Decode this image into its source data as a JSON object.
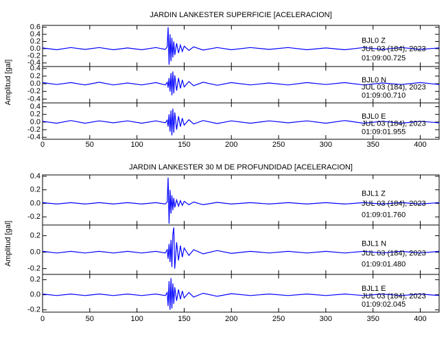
{
  "chart_data": [
    {
      "type": "line",
      "title": "JARDIN LANKESTER SUPERFICIE [ACELERACION]",
      "ylabel": "Amplitud [gal]",
      "xlim": [
        0,
        420
      ],
      "xticks": [
        0,
        50,
        100,
        150,
        200,
        250,
        300,
        350,
        400
      ],
      "x": [
        0,
        15,
        30,
        45,
        60,
        75,
        90,
        105,
        120,
        130,
        132,
        133,
        134,
        135,
        136,
        137,
        138,
        139,
        140,
        142,
        144,
        146,
        148,
        150,
        155,
        160,
        170,
        185,
        200,
        220,
        240,
        260,
        280,
        300,
        320,
        340,
        360,
        380,
        400,
        420
      ],
      "panels": [
        {
          "station": "BJL0 Z",
          "date": "JUL 03 (184), 2023",
          "time": "01:09:00.725",
          "color": "#0000ff",
          "ylim": [
            -0.5,
            0.65
          ],
          "yticks": [
            0.6,
            0.4,
            0.2,
            {
              "value": 0,
              "label": "0.0"
            },
            -0.2,
            -0.4
          ],
          "values": [
            0.02,
            -0.03,
            0.03,
            -0.02,
            0.03,
            -0.03,
            0.02,
            -0.03,
            0.03,
            -0.02,
            0.05,
            0.6,
            -0.45,
            0.4,
            -0.35,
            0.3,
            -0.25,
            0.2,
            -0.18,
            0.15,
            -0.12,
            0.1,
            -0.08,
            0.07,
            -0.05,
            0.05,
            -0.04,
            0.03,
            -0.03,
            0.03,
            -0.02,
            0.03,
            -0.03,
            0.02,
            -0.03,
            0.03,
            -0.02,
            0.03,
            -0.02,
            0.02
          ]
        },
        {
          "station": "BJL0 N",
          "date": "JUL 03 (184), 2023",
          "time": "01:09:00.710",
          "color": "#0000ff",
          "ylim": [
            -0.5,
            0.45
          ],
          "yticks": [
            0.4,
            0.2,
            {
              "value": 0,
              "label": "0.0"
            },
            -0.2,
            -0.4
          ],
          "values": [
            0.03,
            -0.02,
            0.03,
            -0.03,
            0.04,
            -0.03,
            0.02,
            -0.03,
            0.03,
            -0.03,
            0.04,
            -0.1,
            0.15,
            -0.2,
            0.28,
            -0.3,
            0.32,
            -0.25,
            0.22,
            -0.18,
            0.15,
            -0.12,
            0.1,
            -0.08,
            0.06,
            -0.05,
            0.04,
            -0.04,
            0.03,
            -0.03,
            0.02,
            -0.03,
            0.03,
            -0.02,
            0.03,
            -0.03,
            0.02,
            -0.02,
            0.03,
            -0.02
          ]
        },
        {
          "station": "BJL0 E",
          "date": "JUL 03 (184), 2023",
          "time": "01:09:01.955",
          "color": "#0000ff",
          "ylim": [
            -0.45,
            0.5
          ],
          "yticks": [
            0.4,
            0.2,
            {
              "value": 0,
              "label": "0.0"
            },
            -0.2,
            -0.4
          ],
          "values": [
            0.02,
            -0.03,
            0.04,
            -0.03,
            0.03,
            -0.02,
            0.03,
            -0.03,
            0.03,
            -0.02,
            0.05,
            -0.12,
            0.2,
            -0.25,
            0.3,
            -0.35,
            0.35,
            -0.28,
            0.25,
            -0.2,
            0.15,
            -0.12,
            0.1,
            -0.08,
            0.06,
            -0.05,
            0.04,
            -0.04,
            0.03,
            -0.03,
            0.03,
            -0.02,
            0.03,
            -0.03,
            0.04,
            -0.03,
            0.02,
            -0.03,
            0.02,
            -0.02
          ]
        }
      ]
    },
    {
      "type": "line",
      "title": "JARDIN LANKESTER 30 M DE PROFUNDIDAD [ACELERACION]",
      "ylabel": "Amplitud [gal]",
      "xlim": [
        0,
        420
      ],
      "xticks": [
        0,
        50,
        100,
        150,
        200,
        250,
        300,
        350,
        400
      ],
      "x": [
        0,
        15,
        30,
        45,
        60,
        75,
        90,
        105,
        120,
        130,
        132,
        133,
        134,
        135,
        136,
        137,
        138,
        139,
        140,
        142,
        144,
        146,
        148,
        150,
        155,
        160,
        170,
        185,
        200,
        220,
        240,
        260,
        280,
        300,
        320,
        340,
        360,
        380,
        400,
        420
      ],
      "panels": [
        {
          "station": "BJL1 Z",
          "date": "JUL 03 (184), 2023",
          "time": "01:09:01.760",
          "color": "#0000ff",
          "ylim": [
            -0.32,
            0.42
          ],
          "yticks": [
            0.4,
            0.2,
            {
              "value": 0,
              "label": "0.0"
            },
            -0.2
          ],
          "values": [
            0.01,
            -0.01,
            0.01,
            -0.01,
            0.01,
            -0.01,
            0.01,
            -0.01,
            0.01,
            -0.01,
            0.02,
            0.38,
            -0.3,
            0.2,
            -0.15,
            0.12,
            -0.1,
            0.08,
            -0.06,
            0.05,
            -0.04,
            0.04,
            -0.03,
            0.03,
            -0.02,
            0.02,
            -0.02,
            0.015,
            -0.01,
            0.01,
            -0.01,
            0.01,
            -0.01,
            0.01,
            -0.01,
            0.01,
            -0.01,
            0.01,
            -0.01,
            0.01
          ]
        },
        {
          "station": "BJL1 N",
          "date": "JUL 03 (184), 2023",
          "time": "01:09:01.480",
          "color": "#0000ff",
          "ylim": [
            -0.27,
            0.33
          ],
          "yticks": [
            0.2,
            {
              "value": 0,
              "label": "0.0"
            },
            -0.2
          ],
          "values": [
            0.01,
            -0.01,
            0.01,
            -0.01,
            0.01,
            -0.01,
            0.01,
            -0.01,
            0.01,
            -0.01,
            0.03,
            -0.08,
            0.1,
            -0.12,
            0.15,
            -0.18,
            0.22,
            0.3,
            -0.2,
            0.12,
            -0.1,
            0.08,
            -0.06,
            0.05,
            -0.04,
            0.03,
            -0.02,
            0.02,
            -0.015,
            0.01,
            -0.01,
            0.01,
            -0.01,
            0.01,
            -0.01,
            0.01,
            -0.01,
            0.01,
            -0.01,
            0.01
          ]
        },
        {
          "station": "BJL1 E",
          "date": "JUL 03 (184), 2023",
          "time": "01:09:02.045",
          "color": "#0000ff",
          "ylim": [
            -0.23,
            0.27
          ],
          "yticks": [
            0.2,
            {
              "value": 0,
              "label": "0.0"
            },
            -0.2
          ],
          "values": [
            0.01,
            -0.01,
            0.01,
            -0.01,
            0.01,
            -0.01,
            0.01,
            -0.01,
            0.01,
            -0.01,
            0.03,
            -0.15,
            0.18,
            -0.2,
            0.22,
            -0.18,
            0.15,
            -0.12,
            0.1,
            -0.08,
            0.07,
            -0.06,
            0.05,
            -0.04,
            0.03,
            -0.03,
            0.02,
            -0.02,
            0.015,
            -0.01,
            0.01,
            -0.01,
            0.01,
            -0.01,
            0.01,
            -0.01,
            0.01,
            -0.01,
            0.01,
            -0.01
          ]
        }
      ]
    }
  ]
}
